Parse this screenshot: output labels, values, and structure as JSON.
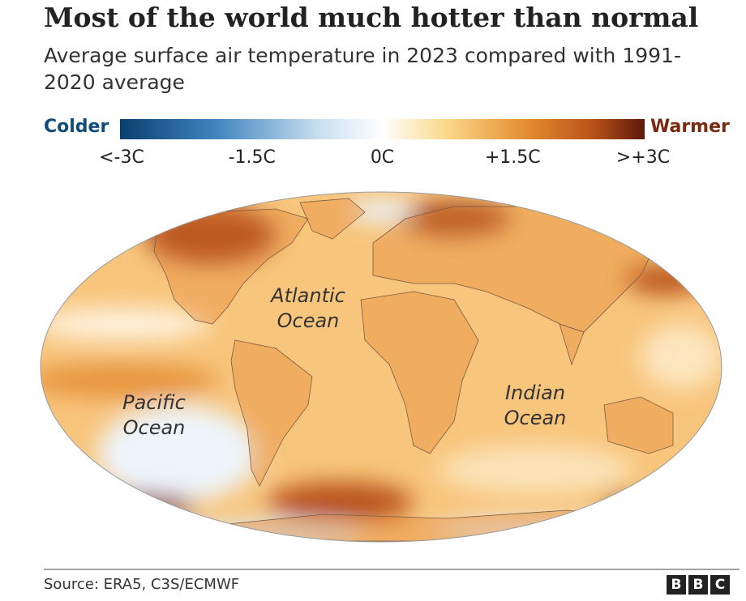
{
  "header": {
    "title": "Most of the world much hotter than normal",
    "subtitle": "Average surface air temperature in 2023 compared with 1991-2020 average"
  },
  "legend": {
    "colder": "Colder",
    "warmer": "Warmer",
    "ticks": [
      "<-3C",
      "-1.5C",
      "0C",
      "+1.5C",
      ">+3C"
    ]
  },
  "map": {
    "labels": [
      "Atlantic Ocean",
      "Pacific Ocean",
      "Indian Ocean"
    ]
  },
  "footer": {
    "source": "Source: ERA5, C3S/ECMWF",
    "logo": [
      "B",
      "B",
      "C"
    ]
  }
}
